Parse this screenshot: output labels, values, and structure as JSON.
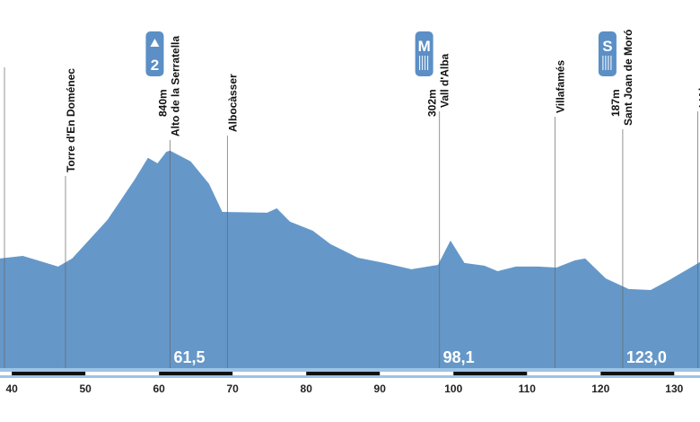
{
  "chart_data": {
    "type": "area",
    "x": [
      38.4,
      41.5,
      46.3,
      48.2,
      53.0,
      56.7,
      58.5,
      59.8,
      61.0,
      61.5,
      64.3,
      66.8,
      68.6,
      74.7,
      76.0,
      77.8,
      80.9,
      83.3,
      87.0,
      90.6,
      94.3,
      97.9,
      99.6,
      101.5,
      104.2,
      106.0,
      108.5,
      111.5,
      114.0,
      116.5,
      117.9,
      120.7,
      123.8,
      126.8,
      129.3,
      133.5
    ],
    "series": [
      {
        "color": "#6598c9",
        "values": [
          331,
          343,
          293,
          331,
          513,
          704,
          806,
          780,
          835,
          840,
          789,
          683,
          551,
          547,
          568,
          505,
          462,
          399,
          335,
          310,
          280,
          301,
          416,
          310,
          297,
          271,
          293,
          293,
          288,
          322,
          331,
          237,
          187,
          182,
          229,
          314
        ]
      }
    ],
    "xlim": [
      38.4,
      133.5
    ],
    "ylim": [
      0,
      1000
    ],
    "xticks": [
      40,
      50,
      60,
      70,
      80,
      90,
      100,
      110,
      120,
      130
    ],
    "locations": [
      {
        "name": "Torre d'En Doménec",
        "km": 47.3
      },
      {
        "name": "Alto de la Serratella",
        "km": 61.5,
        "km_label": "61,5",
        "altitude": 840,
        "altitude_label": "840m",
        "icon": "2"
      },
      {
        "name": "Albocàsser",
        "km": 69.3
      },
      {
        "name": "Vall d'Alba",
        "km": 98.1,
        "km_label": "98,1",
        "altitude": 302,
        "altitude_label": "302m",
        "icon": "M"
      },
      {
        "name": "Villafamés",
        "km": 113.8
      },
      {
        "name": "Sant Joan de Moró",
        "km": 123.0,
        "km_label": "123,0",
        "altitude": 187,
        "altitude_label": "187m",
        "icon": "S"
      },
      {
        "name": "L'Alcora",
        "km": 133.2
      }
    ]
  }
}
